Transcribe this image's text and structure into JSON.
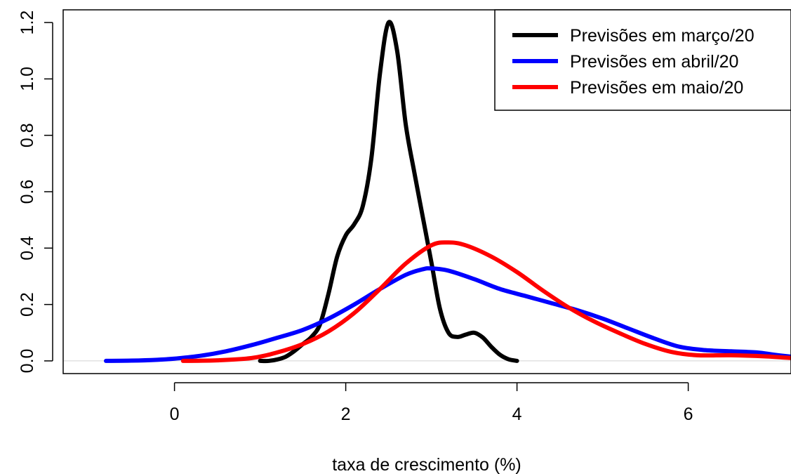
{
  "chart_data": {
    "type": "line",
    "title": "",
    "xlabel": "taxa de crescimento (%)",
    "ylabel": "",
    "xlim": [
      -1.3,
      7.2
    ],
    "ylim": [
      -0.045,
      1.245
    ],
    "x_ticks": [
      0,
      2,
      4,
      6
    ],
    "y_ticks": [
      0.0,
      0.2,
      0.4,
      0.6,
      0.8,
      1.0,
      1.2
    ],
    "x_tick_labels": [
      "0",
      "2",
      "4",
      "6"
    ],
    "y_tick_labels": [
      "0.0",
      "0.2",
      "0.4",
      "0.6",
      "0.8",
      "1.0",
      "1.2"
    ],
    "baseline": 0,
    "legend_position": "top-right",
    "series": [
      {
        "name": "Previsões em março/20",
        "color": "#000000",
        "points": [
          [
            1.0,
            0.0
          ],
          [
            1.1,
            0.0
          ],
          [
            1.2,
            0.005
          ],
          [
            1.3,
            0.015
          ],
          [
            1.4,
            0.035
          ],
          [
            1.5,
            0.06
          ],
          [
            1.6,
            0.085
          ],
          [
            1.7,
            0.13
          ],
          [
            1.8,
            0.24
          ],
          [
            1.9,
            0.37
          ],
          [
            2.0,
            0.445
          ],
          [
            2.1,
            0.485
          ],
          [
            2.2,
            0.55
          ],
          [
            2.3,
            0.72
          ],
          [
            2.4,
            1.02
          ],
          [
            2.5,
            1.2
          ],
          [
            2.6,
            1.1
          ],
          [
            2.7,
            0.84
          ],
          [
            2.8,
            0.67
          ],
          [
            2.9,
            0.51
          ],
          [
            3.0,
            0.35
          ],
          [
            3.1,
            0.185
          ],
          [
            3.2,
            0.1
          ],
          [
            3.3,
            0.085
          ],
          [
            3.4,
            0.093
          ],
          [
            3.5,
            0.1
          ],
          [
            3.6,
            0.083
          ],
          [
            3.7,
            0.05
          ],
          [
            3.8,
            0.022
          ],
          [
            3.9,
            0.006
          ],
          [
            4.0,
            0.0
          ]
        ]
      },
      {
        "name": "Previsões em abril/20",
        "color": "#0000ff",
        "points": [
          [
            -0.8,
            0.0
          ],
          [
            -0.5,
            0.001
          ],
          [
            -0.2,
            0.004
          ],
          [
            0.0,
            0.008
          ],
          [
            0.3,
            0.018
          ],
          [
            0.6,
            0.034
          ],
          [
            0.9,
            0.056
          ],
          [
            1.2,
            0.082
          ],
          [
            1.5,
            0.11
          ],
          [
            1.8,
            0.15
          ],
          [
            2.1,
            0.2
          ],
          [
            2.4,
            0.255
          ],
          [
            2.7,
            0.305
          ],
          [
            2.9,
            0.325
          ],
          [
            3.0,
            0.328
          ],
          [
            3.2,
            0.32
          ],
          [
            3.5,
            0.29
          ],
          [
            3.8,
            0.255
          ],
          [
            4.1,
            0.23
          ],
          [
            4.4,
            0.205
          ],
          [
            4.7,
            0.18
          ],
          [
            5.0,
            0.15
          ],
          [
            5.3,
            0.115
          ],
          [
            5.6,
            0.08
          ],
          [
            5.9,
            0.05
          ],
          [
            6.2,
            0.038
          ],
          [
            6.5,
            0.034
          ],
          [
            6.8,
            0.03
          ],
          [
            7.0,
            0.022
          ],
          [
            7.2,
            0.015
          ]
        ]
      },
      {
        "name": "Previsões em maio/20",
        "color": "#ff0000",
        "points": [
          [
            0.1,
            0.0
          ],
          [
            0.5,
            0.002
          ],
          [
            0.9,
            0.01
          ],
          [
            1.2,
            0.03
          ],
          [
            1.5,
            0.06
          ],
          [
            1.8,
            0.105
          ],
          [
            2.1,
            0.17
          ],
          [
            2.4,
            0.255
          ],
          [
            2.7,
            0.345
          ],
          [
            3.0,
            0.41
          ],
          [
            3.2,
            0.42
          ],
          [
            3.4,
            0.41
          ],
          [
            3.7,
            0.37
          ],
          [
            4.0,
            0.315
          ],
          [
            4.3,
            0.25
          ],
          [
            4.6,
            0.19
          ],
          [
            4.9,
            0.14
          ],
          [
            5.2,
            0.098
          ],
          [
            5.5,
            0.06
          ],
          [
            5.8,
            0.032
          ],
          [
            6.1,
            0.02
          ],
          [
            6.5,
            0.02
          ],
          [
            6.9,
            0.016
          ],
          [
            7.2,
            0.01
          ]
        ]
      }
    ]
  }
}
